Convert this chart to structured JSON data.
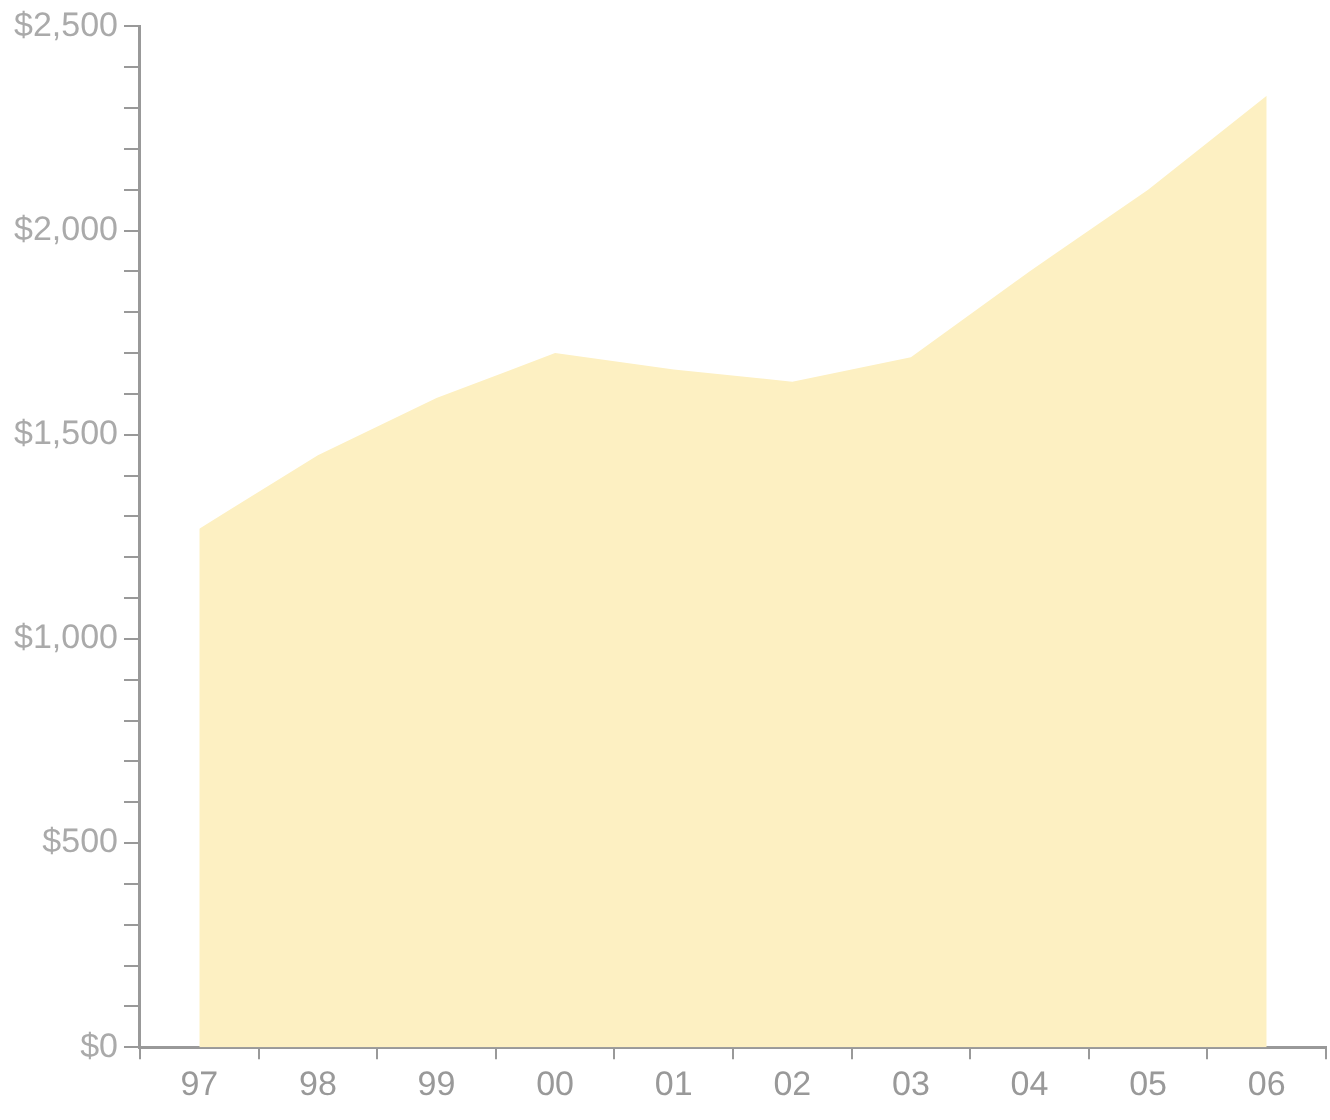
{
  "chart_data": {
    "type": "area",
    "categories": [
      "97",
      "98",
      "99",
      "00",
      "01",
      "02",
      "03",
      "04",
      "05",
      "06"
    ],
    "values": [
      1270,
      1450,
      1590,
      1700,
      1660,
      1630,
      1690,
      1900,
      2100,
      2330
    ],
    "color": "#fdf0c2",
    "ylim": [
      0,
      2500
    ],
    "yticks": [
      {
        "value": 0,
        "label": "$0"
      },
      {
        "value": 100,
        "label": null
      },
      {
        "value": 200,
        "label": null
      },
      {
        "value": 300,
        "label": null
      },
      {
        "value": 400,
        "label": null
      },
      {
        "value": 500,
        "label": "$500"
      },
      {
        "value": 600,
        "label": null
      },
      {
        "value": 700,
        "label": null
      },
      {
        "value": 800,
        "label": null
      },
      {
        "value": 900,
        "label": null
      },
      {
        "value": 1000,
        "label": "$1,000"
      },
      {
        "value": 1100,
        "label": null
      },
      {
        "value": 1200,
        "label": null
      },
      {
        "value": 1300,
        "label": null
      },
      {
        "value": 1400,
        "label": null
      },
      {
        "value": 1500,
        "label": "$1,500"
      },
      {
        "value": 1600,
        "label": null
      },
      {
        "value": 1700,
        "label": null
      },
      {
        "value": 1800,
        "label": null
      },
      {
        "value": 1900,
        "label": null
      },
      {
        "value": 2000,
        "label": "$2,000"
      },
      {
        "value": 2100,
        "label": null
      },
      {
        "value": 2200,
        "label": null
      },
      {
        "value": 2300,
        "label": null
      },
      {
        "value": 2400,
        "label": null
      },
      {
        "value": 2500,
        "label": "$2,500"
      }
    ]
  }
}
